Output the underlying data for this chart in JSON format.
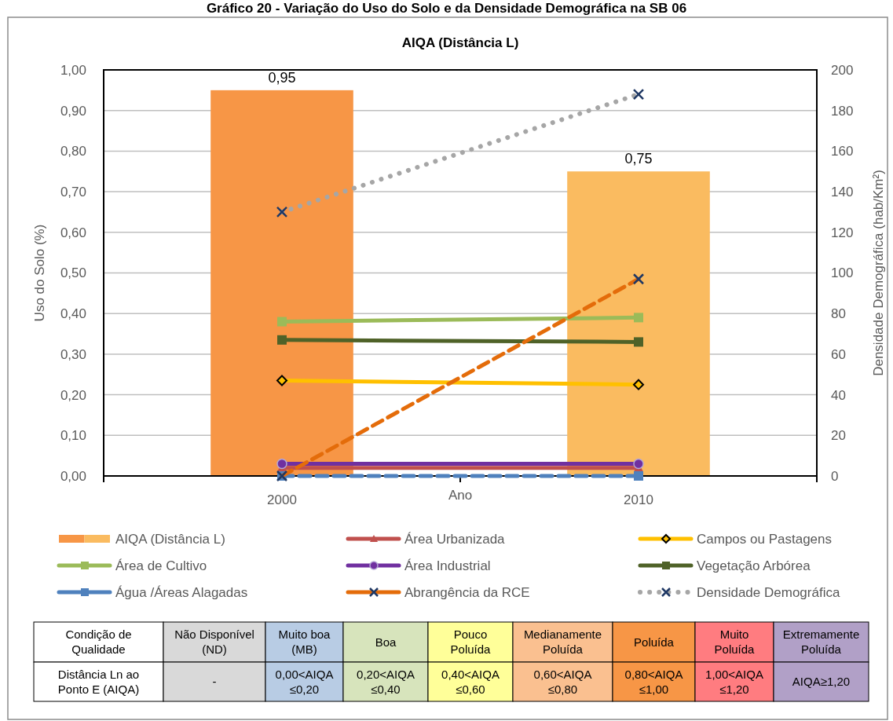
{
  "chart_data": [
    {
      "type": "bar",
      "title": "Gráfico 20 - Variação do Uso do Solo e da Densidade Demográfica na SB 06",
      "subtitle": "AIQA (Distância L)",
      "xlabel": "Ano",
      "ylabel": "Uso do Solo (%)",
      "y2label": "Densidade Demográfica (hab/Km²)",
      "categories": [
        "2000",
        "2010"
      ],
      "ylim": [
        0,
        1
      ],
      "yticks": [
        {
          "value": 0,
          "label": "0,00"
        },
        {
          "value": 0.1,
          "label": "0,10"
        },
        {
          "value": 0.2,
          "label": "0,20"
        },
        {
          "value": 0.3,
          "label": "0,30"
        },
        {
          "value": 0.4,
          "label": "0,40"
        },
        {
          "value": 0.5,
          "label": "0,50"
        },
        {
          "value": 0.6,
          "label": "0,60"
        },
        {
          "value": 0.7,
          "label": "0,70"
        },
        {
          "value": 0.8,
          "label": "0,80"
        },
        {
          "value": 0.9,
          "label": "0,90"
        },
        {
          "value": 1,
          "label": "1,00"
        }
      ],
      "y2lim": [
        0,
        200
      ],
      "y2ticks": [
        0,
        20,
        40,
        60,
        80,
        100,
        120,
        140,
        160,
        180,
        200
      ],
      "grid": "y",
      "legend": "bottom",
      "series": [
        {
          "name": "AIQA (Distância L)",
          "type": "bar",
          "colors": [
            "#f79646",
            "#fabb60"
          ],
          "values": [
            0.95,
            0.75
          ],
          "value_labels": [
            "0,95",
            "0,75"
          ]
        },
        {
          "name": "Área Urbanizada",
          "type": "line",
          "color": "#c0504d",
          "marker": "triangle",
          "line_style": "solid",
          "values": [
            0.02,
            0.02
          ]
        },
        {
          "name": "Campos ou Pastagens",
          "type": "line",
          "color": "#ffc000",
          "marker": "diamond",
          "line_style": "solid",
          "values": [
            0.235,
            0.225
          ]
        },
        {
          "name": "Área de Cultivo",
          "type": "line",
          "color": "#9bbb59",
          "marker": "square",
          "line_style": "solid",
          "values": [
            0.38,
            0.39
          ]
        },
        {
          "name": "Área Industrial",
          "type": "line",
          "color": "#7030a0",
          "marker": "circle",
          "line_style": "solid",
          "values": [
            0.03,
            0.03
          ]
        },
        {
          "name": "Vegetação Arbórea",
          "type": "line",
          "color": "#4f6228",
          "marker": "square",
          "line_style": "solid",
          "values": [
            0.335,
            0.33
          ]
        },
        {
          "name": "Água /Áreas Alagadas",
          "type": "line",
          "color": "#4f81bd",
          "marker": "square",
          "line_style": "dashed",
          "values": [
            0,
            0
          ]
        },
        {
          "name": "Abrangência da RCE",
          "type": "line",
          "color": "#e46c0a",
          "marker": "cross",
          "line_style": "dashed",
          "values": [
            0,
            0.485
          ]
        },
        {
          "name": "Densidade Demográfica",
          "type": "line",
          "axis": "y2",
          "color": "#a6a6a6",
          "marker": "cross",
          "line_style": "dotted",
          "values": [
            130,
            188
          ]
        }
      ]
    },
    {
      "type": "other",
      "categories": [
        "Condição de\nQualidade",
        "Não Disponível\n(ND)",
        "Muito boa\n(MB)",
        "Boa",
        "Pouco\nPoluída",
        "Medianamente\nPoluída",
        "Poluída",
        "Muito\nPoluída",
        "Extremamente\nPoluída"
      ],
      "cell_labels": [
        [
          "Distância Ln ao\nPonto E (AIQA)",
          "-",
          "0,00<AIQA\n≤0,20",
          "0,20<AIQA\n≤0,40",
          "0,40<AIQA\n≤0,60",
          "0,60<AIQA\n≤0,80",
          "0,80<AIQA\n≤1,00",
          "1,00<AIQA\n≤1,20",
          "AIQA≥1,20"
        ]
      ],
      "colors": [
        "#ffffff",
        "#d9d9d9",
        "#b8cce4",
        "#d7e4bc",
        "#ffff99",
        "#fac090",
        "#f79646",
        "#ff7c80",
        "#b1a0c7"
      ]
    }
  ]
}
